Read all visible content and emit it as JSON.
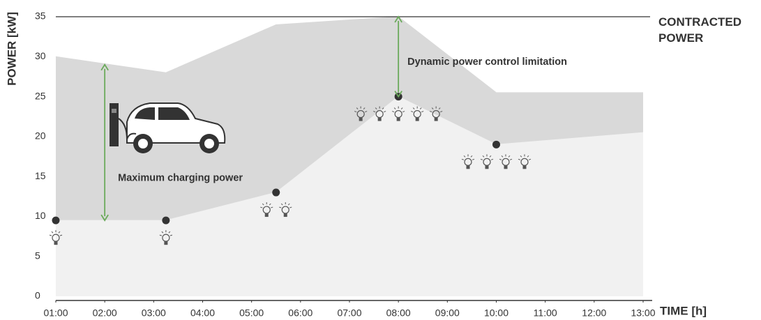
{
  "chart_data": {
    "type": "area",
    "ylabel": "POWER [kW]",
    "xlabel": "TIME [h]",
    "x": [
      1,
      3.25,
      5.5,
      8,
      10,
      13
    ],
    "xlim": [
      1,
      13
    ],
    "xticks": [
      {
        "value": 1,
        "label": "01:00"
      },
      {
        "value": 2,
        "label": "02:00"
      },
      {
        "value": 3,
        "label": "03:00"
      },
      {
        "value": 4,
        "label": "04:00"
      },
      {
        "value": 5,
        "label": "05:00"
      },
      {
        "value": 6,
        "label": "06:00"
      },
      {
        "value": 7,
        "label": "07:00"
      },
      {
        "value": 8,
        "label": "08:00"
      },
      {
        "value": 9,
        "label": "09:00"
      },
      {
        "value": 10,
        "label": "10:00"
      },
      {
        "value": 11,
        "label": "11:00"
      },
      {
        "value": 12,
        "label": "12:00"
      },
      {
        "value": 13,
        "label": "13:00"
      }
    ],
    "ylim": [
      0,
      35
    ],
    "yticks": [
      0,
      5,
      10,
      15,
      20,
      25,
      30,
      35
    ],
    "series": [
      {
        "color": "#d9d9d9",
        "values": [
          30,
          28,
          34,
          35,
          25.5,
          25.5
        ]
      },
      {
        "color": "#f1f1f1",
        "values": [
          9.5,
          9.5,
          13,
          25,
          19,
          20.5
        ]
      }
    ],
    "points": {
      "x": [
        1,
        3.25,
        5.5,
        8,
        10
      ],
      "values": [
        9.5,
        9.5,
        13,
        25,
        19
      ],
      "color": "#333333"
    },
    "reference_line": {
      "value": 35,
      "label": "CONTRACTED POWER"
    },
    "annotations": [
      {
        "text": "Maximum charging power",
        "x": 2,
        "from": 9.5,
        "to": 29
      },
      {
        "text": "Dynamic power control limitation",
        "x": 8,
        "from": 25,
        "to": 35
      }
    ],
    "annotation_color": "#6aaa5a"
  }
}
